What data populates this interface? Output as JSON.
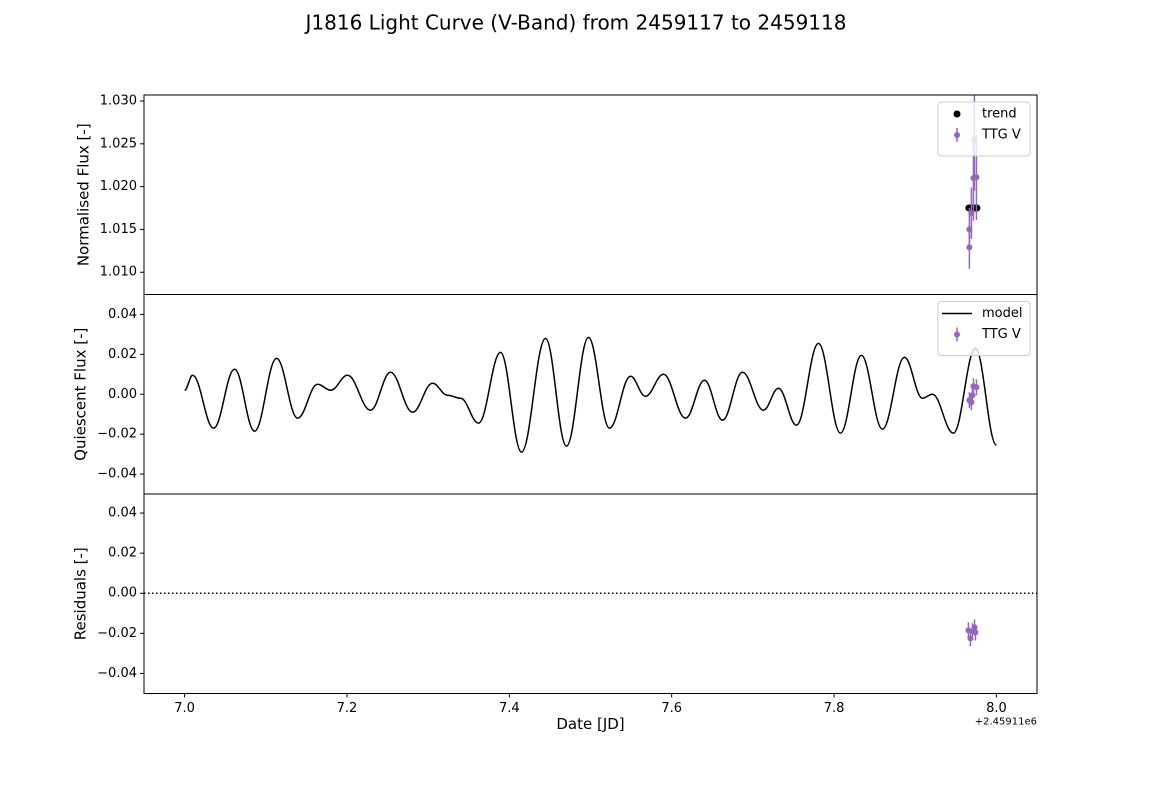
{
  "title": "J1816 Light Curve (V-Band) from 2459117 to 2459118",
  "chart_data": [
    {
      "type": "scatter",
      "ylabel": "Normalised Flux [-]",
      "legend": "upper right",
      "xlim": [
        6.95,
        8.05
      ],
      "ylim": [
        1.0074,
        1.0307
      ],
      "yticks": [
        {
          "value": 1.01,
          "label": "1.010"
        },
        {
          "value": 1.015,
          "label": "1.015"
        },
        {
          "value": 1.02,
          "label": "1.020"
        },
        {
          "value": 1.025,
          "label": "1.025"
        },
        {
          "value": 1.03,
          "label": "1.030"
        }
      ],
      "series": [
        {
          "name": "trend",
          "kind": "points",
          "color": "#000000",
          "x": [
            7.966,
            7.968,
            7.97,
            7.972,
            7.974,
            7.976
          ],
          "values": [
            1.0175,
            1.0175,
            1.0175,
            1.0175,
            1.0175,
            1.0175
          ]
        },
        {
          "name": "TTG V",
          "kind": "errorbar",
          "color": "#9467bd",
          "x": [
            7.9667,
            7.9667,
            7.9692,
            7.9717,
            7.9754,
            7.9729
          ],
          "values": [
            1.0129,
            1.015,
            1.0169,
            1.021,
            1.0211,
            1.0255
          ],
          "errors": [
            0.0025,
            0.0025,
            0.003,
            0.005,
            0.005,
            0.006
          ]
        }
      ]
    },
    {
      "type": "line",
      "ylabel": "Quiescent Flux [-]",
      "legend": "upper right",
      "xlim": [
        6.95,
        8.05
      ],
      "ylim": [
        -0.05,
        0.05
      ],
      "yticks": [
        {
          "value": -0.04,
          "label": "−0.04"
        },
        {
          "value": -0.02,
          "label": "−0.02"
        },
        {
          "value": 0,
          "label": "0.00"
        },
        0.02,
        0.04
      ],
      "series": [
        {
          "name": "model",
          "kind": "line",
          "color": "#000000",
          "x": [
            7.0,
            7.0099,
            7.0357,
            7.0616,
            7.0862,
            7.1133,
            7.1392,
            7.1638,
            7.18,
            7.2007,
            7.229,
            7.2537,
            7.2808,
            7.3054,
            7.3239,
            7.34,
            7.3621,
            7.3892,
            7.415,
            7.4446,
            7.4704,
            7.4975,
            7.5234,
            7.5493,
            7.5677,
            7.5899,
            7.617,
            7.6404,
            7.6626,
            7.6872,
            7.713,
            7.7315,
            7.7537,
            7.7808,
            7.8079,
            7.8337,
            7.8596,
            7.8867,
            7.9089,
            7.9212,
            7.947,
            7.9741,
            8.0
          ],
          "values": [
            0.002,
            0.0095,
            -0.017,
            0.0125,
            -0.0185,
            0.018,
            -0.012,
            0.005,
            0.002,
            0.0095,
            -0.008,
            0.011,
            -0.009,
            0.0055,
            -0.0005,
            -0.002,
            -0.0145,
            0.021,
            -0.029,
            0.028,
            -0.026,
            0.0285,
            -0.017,
            0.009,
            -0.001,
            0.01,
            -0.012,
            0.007,
            -0.013,
            0.011,
            -0.008,
            0.003,
            -0.0155,
            0.0255,
            -0.0195,
            0.0195,
            -0.0175,
            0.0185,
            -0.002,
            0.0,
            -0.0195,
            0.023,
            -0.0255
          ]
        },
        {
          "name": "TTG V",
          "kind": "errorbar",
          "color": "#9467bd",
          "x": [
            7.9667,
            7.9692,
            7.9705,
            7.9717,
            7.9754
          ],
          "values": [
            -0.003,
            -0.004,
            -0.0005,
            0.004,
            0.0035
          ],
          "errors": [
            0.004,
            0.004,
            0.004,
            0.004,
            0.004
          ]
        }
      ]
    },
    {
      "type": "scatter",
      "ylabel": "Residuals [-]",
      "xlabel": "Date [JD]",
      "x_offset": "+2.45911e6",
      "xlim": [
        6.95,
        8.05
      ],
      "ylim": [
        -0.05,
        0.0495
      ],
      "hline": 0,
      "xticks": [
        {
          "value": 7,
          "label": "7.0"
        },
        7.2,
        7.4,
        7.6,
        7.8,
        {
          "value": 8,
          "label": "8.0"
        }
      ],
      "yticks": [
        {
          "value": -0.04,
          "label": "−0.04"
        },
        {
          "value": -0.02,
          "label": "−0.02"
        },
        {
          "value": 0,
          "label": "0.00"
        },
        0.02,
        0.04
      ],
      "series": [
        {
          "name": "TTG V",
          "kind": "errorbar",
          "color": "#9467bd",
          "x": [
            7.9655,
            7.968,
            7.9705,
            7.9742,
            7.973
          ],
          "values": [
            -0.0185,
            -0.0225,
            -0.019,
            -0.0195,
            -0.017
          ],
          "errors": [
            0.004,
            0.004,
            0.004,
            0.004,
            0.004
          ]
        }
      ]
    }
  ]
}
